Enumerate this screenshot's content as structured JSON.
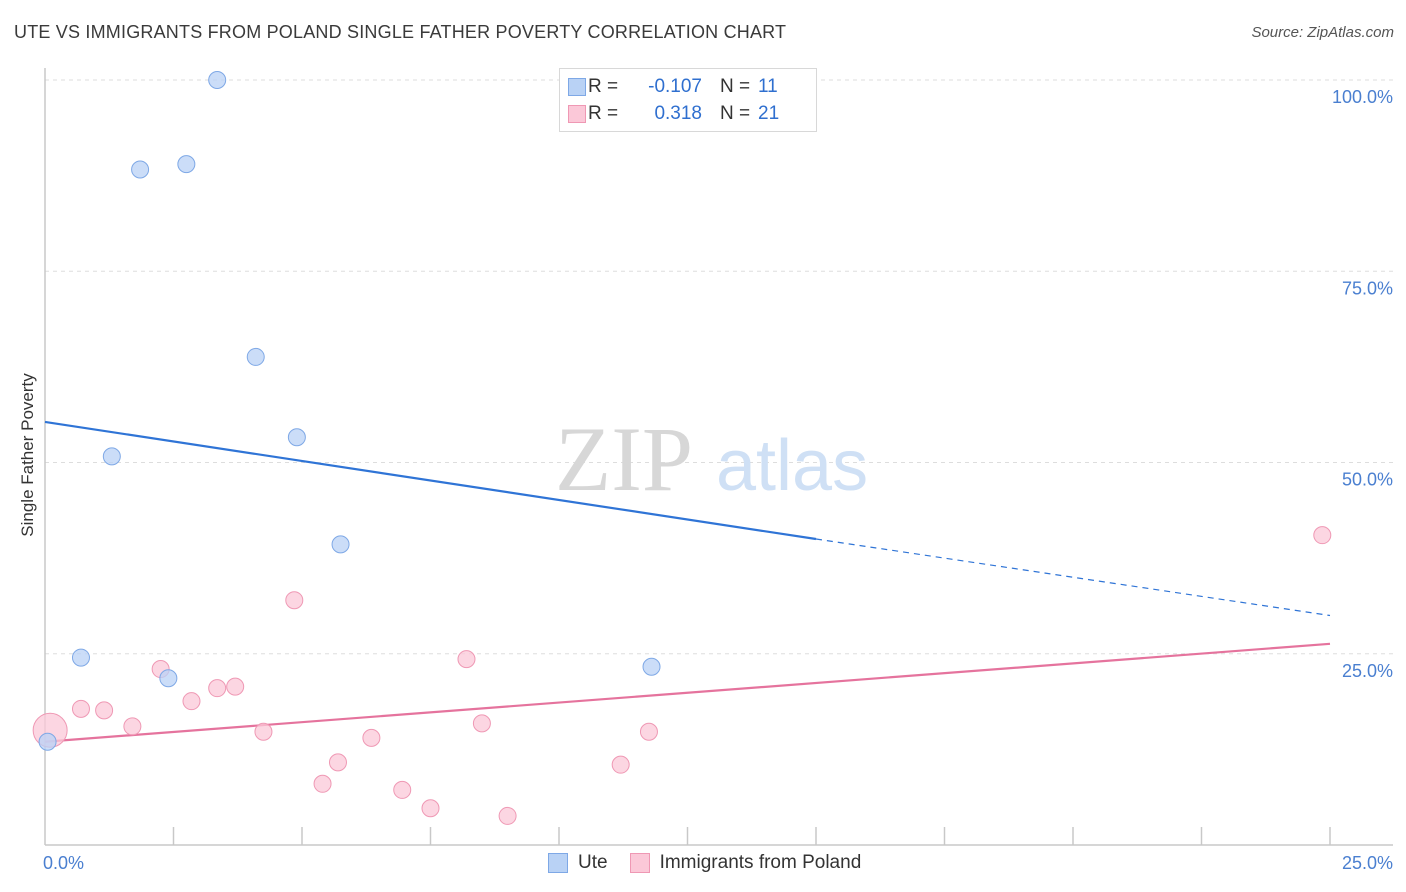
{
  "title": "UTE VS IMMIGRANTS FROM POLAND SINGLE FATHER POVERTY CORRELATION CHART",
  "source": "Source: ZipAtlas.com",
  "watermark": {
    "zip": "ZIP",
    "atlas": "atlas"
  },
  "colors": {
    "ute_fill": "#b9d2f5",
    "ute_stroke": "#7ea8e6",
    "ute_line": "#2f74d6",
    "poland_fill": "#fbc8d8",
    "poland_stroke": "#ef98b4",
    "poland_line": "#e5739d",
    "tick_text": "#4a7fd0",
    "grid": "#dddddd"
  },
  "legend": {
    "ute": {
      "r_label": "R =",
      "r_value": "-0.107",
      "n_label": "N =",
      "n_value": "11"
    },
    "poland": {
      "r_label": "R =",
      "r_value": "0.318",
      "n_label": "N =",
      "n_value": "21"
    }
  },
  "bottom_legend": {
    "ute": "Ute",
    "poland": "Immigrants from Poland"
  },
  "chart_data": {
    "type": "scatter",
    "title": "UTE VS IMMIGRANTS FROM POLAND SINGLE FATHER POVERTY CORRELATION CHART",
    "xlabel": "",
    "ylabel": "Single Father Poverty",
    "xlim": [
      0,
      25
    ],
    "ylim": [
      0,
      100
    ],
    "x_tick_labels": [
      "0.0%",
      "25.0%"
    ],
    "y_ticks": [
      25,
      50,
      75,
      100
    ],
    "y_tick_labels": [
      "25.0%",
      "50.0%",
      "75.0%",
      "100.0%"
    ],
    "grid": "horizontal dashed",
    "legend_placement": "top-center",
    "series": [
      {
        "name": "Ute",
        "points": [
          [
            0.05,
            13.5
          ],
          [
            0.7,
            24.5
          ],
          [
            1.3,
            50.8
          ],
          [
            1.85,
            88.3
          ],
          [
            2.4,
            21.8
          ],
          [
            2.75,
            89.0
          ],
          [
            3.35,
            100.0
          ],
          [
            4.1,
            63.8
          ],
          [
            4.9,
            53.3
          ],
          [
            5.75,
            39.3
          ],
          [
            11.8,
            23.3
          ]
        ],
        "trend": {
          "x0": 0,
          "y0": 55.3,
          "x1": 15.0,
          "y1": 40.0,
          "dash_to_x": 25,
          "dash_to_y": 30.0
        }
      },
      {
        "name": "Immigrants from Poland",
        "points": [
          [
            0.1,
            15.0
          ],
          [
            0.7,
            17.8
          ],
          [
            1.15,
            17.6
          ],
          [
            1.7,
            15.5
          ],
          [
            2.25,
            23.0
          ],
          [
            2.85,
            18.8
          ],
          [
            3.35,
            20.5
          ],
          [
            3.7,
            20.7
          ],
          [
            4.25,
            14.8
          ],
          [
            4.85,
            32.0
          ],
          [
            5.4,
            8.0
          ],
          [
            5.7,
            10.8
          ],
          [
            6.35,
            14.0
          ],
          [
            6.95,
            7.2
          ],
          [
            7.5,
            4.8
          ],
          [
            8.2,
            24.3
          ],
          [
            8.5,
            15.9
          ],
          [
            9.0,
            3.8
          ],
          [
            11.2,
            10.5
          ],
          [
            11.75,
            14.8
          ],
          [
            24.85,
            40.5
          ]
        ],
        "trend": {
          "x0": 0,
          "y0": 13.5,
          "x1": 25,
          "y1": 26.3
        }
      }
    ]
  }
}
